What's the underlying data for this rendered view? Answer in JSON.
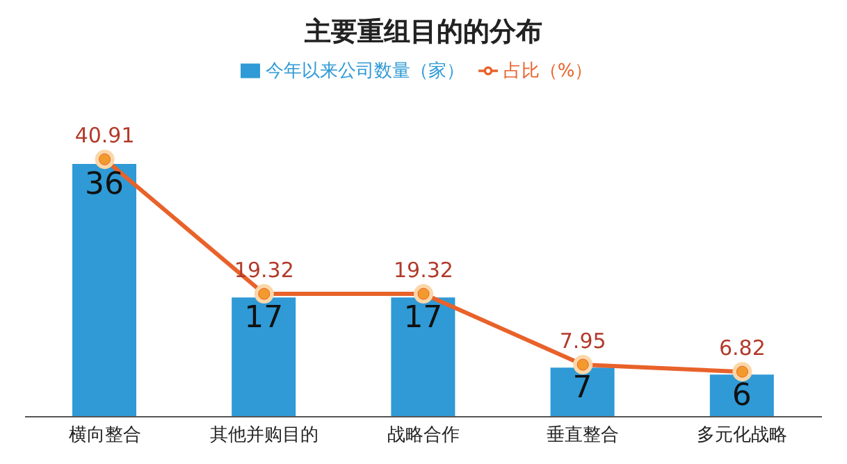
{
  "chart_data": {
    "type": "bar",
    "title": "主要重组目的的分布",
    "categories": [
      "横向整合",
      "其他并购目的",
      "战略合作",
      "垂直整合",
      "多元化战略"
    ],
    "series": [
      {
        "name": "今年以来公司数量（家）",
        "color": "#2f9ad6",
        "values": [
          36,
          17,
          17,
          7,
          6
        ]
      },
      {
        "name": "占比（%）",
        "type": "line",
        "axis": "y2",
        "color": "#e8622a",
        "values": [
          40.91,
          19.32,
          19.32,
          7.95,
          6.82
        ]
      }
    ],
    "tick_labels": "x",
    "data_labels": true,
    "legend": "top",
    "marker": "circle"
  }
}
